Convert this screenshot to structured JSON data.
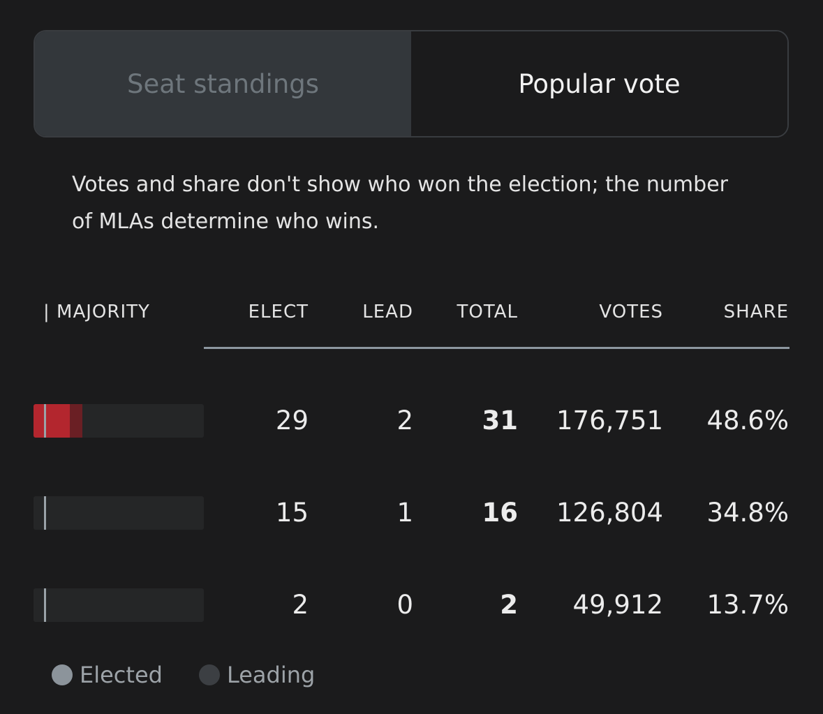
{
  "tabs": {
    "seat_standings": "Seat standings",
    "popular_vote": "Popular vote"
  },
  "note": "Votes and share don't show who won the election; the number of MLAs determine who wins.",
  "columns": {
    "majority": "| MAJORITY",
    "elect": "ELECT",
    "lead": "LEAD",
    "total": "TOTAL",
    "votes": "VOTES",
    "share": "SHARE"
  },
  "rows": [
    {
      "elect": "29",
      "lead": "2",
      "total": "31",
      "votes": "176,751",
      "share": "48.6%",
      "elected_seats": 29,
      "leading_seats": 2,
      "elected_color": "#b3262e",
      "leading_color": "#6a1f24"
    },
    {
      "elect": "15",
      "lead": "1",
      "total": "16",
      "votes": "126,804",
      "share": "34.8%",
      "elected_seats": 15,
      "leading_seats": 1,
      "elected_color": "#252627",
      "leading_color": "#252627"
    },
    {
      "elect": "2",
      "lead": "0",
      "total": "2",
      "votes": "49,912",
      "share": "13.7%",
      "elected_seats": 2,
      "leading_seats": 0,
      "elected_color": "#252627",
      "leading_color": "#252627"
    }
  ],
  "legend": {
    "elected": "Elected",
    "leading": "Leading",
    "elected_color": "#8c949b",
    "leading_color": "#3c3f43"
  }
}
